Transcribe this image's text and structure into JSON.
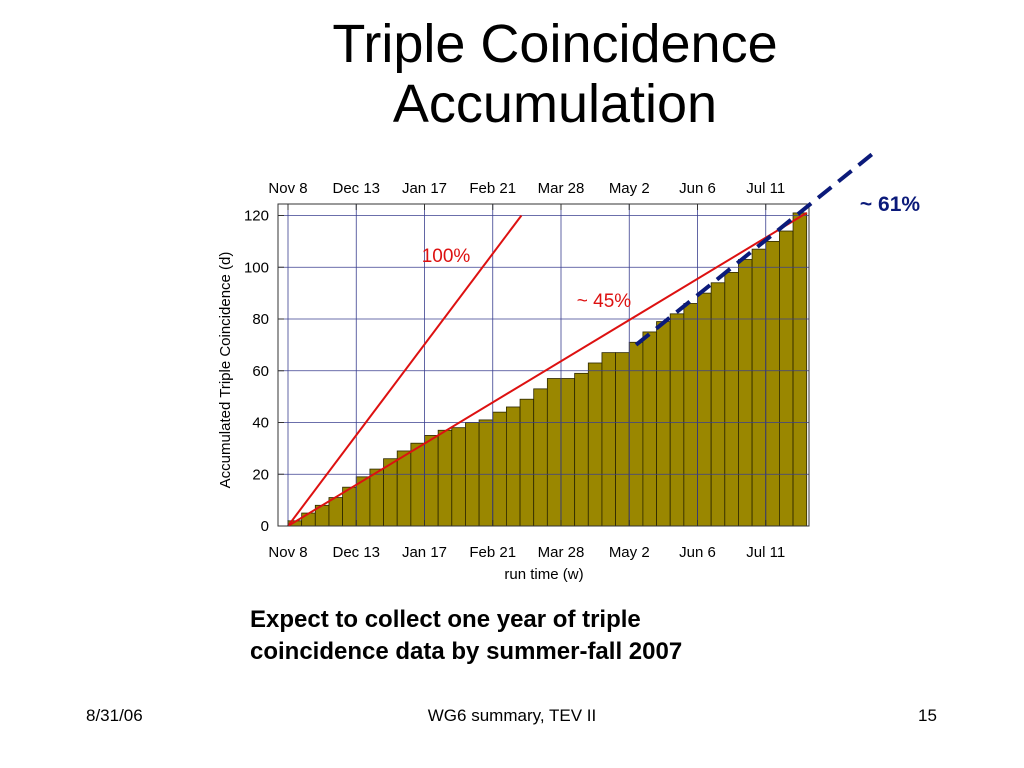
{
  "slide": {
    "title_lines": [
      "Triple Coincidence",
      "Accumulation"
    ],
    "caption_lines": [
      "Expect to collect one year of triple",
      "coincidence data by summer-fall 2007"
    ],
    "footer": {
      "date": "8/31/06",
      "center": "WG6 summary, TEV II",
      "page": "15"
    }
  },
  "colors": {
    "bar_fill": "#9a8700",
    "reference_line": "#dd1111",
    "projection_line": "#0b1a7a",
    "grid": "#3a3f8f"
  },
  "chart_data": {
    "type": "bar",
    "xlabel": "run time (w)",
    "ylabel": "Accumulated Triple Coincidence (d)",
    "x_tick_labels": [
      "Nov 8",
      "Dec 13",
      "Jan 17",
      "Feb 21",
      "Mar 28",
      "May 2",
      "Jun 6",
      "Jul 11"
    ],
    "x_tick_weeks": [
      0,
      5,
      10,
      15,
      20,
      25,
      30,
      35
    ],
    "xlim": [
      0,
      38
    ],
    "ylim": [
      0,
      120
    ],
    "y_ticks": [
      0,
      20,
      40,
      60,
      80,
      100,
      120
    ],
    "grid": true,
    "bars": [
      2,
      5,
      8,
      11,
      15,
      19,
      22,
      26,
      29,
      32,
      35,
      37,
      38,
      40,
      41,
      44,
      46,
      49,
      53,
      57,
      57,
      59,
      63,
      67,
      67,
      71,
      75,
      79,
      82,
      86,
      90,
      94,
      98,
      103,
      107,
      110,
      114,
      121
    ],
    "reference_lines": [
      {
        "label": "100%",
        "from": [
          0,
          0
        ],
        "to": [
          17.1,
          120
        ]
      },
      {
        "label": "~ 45%",
        "from": [
          0,
          0
        ],
        "to": [
          38,
          121
        ]
      }
    ],
    "projection": {
      "label": "~ 61%",
      "from": [
        25.5,
        70
      ],
      "to": [
        43.1,
        145
      ]
    }
  }
}
